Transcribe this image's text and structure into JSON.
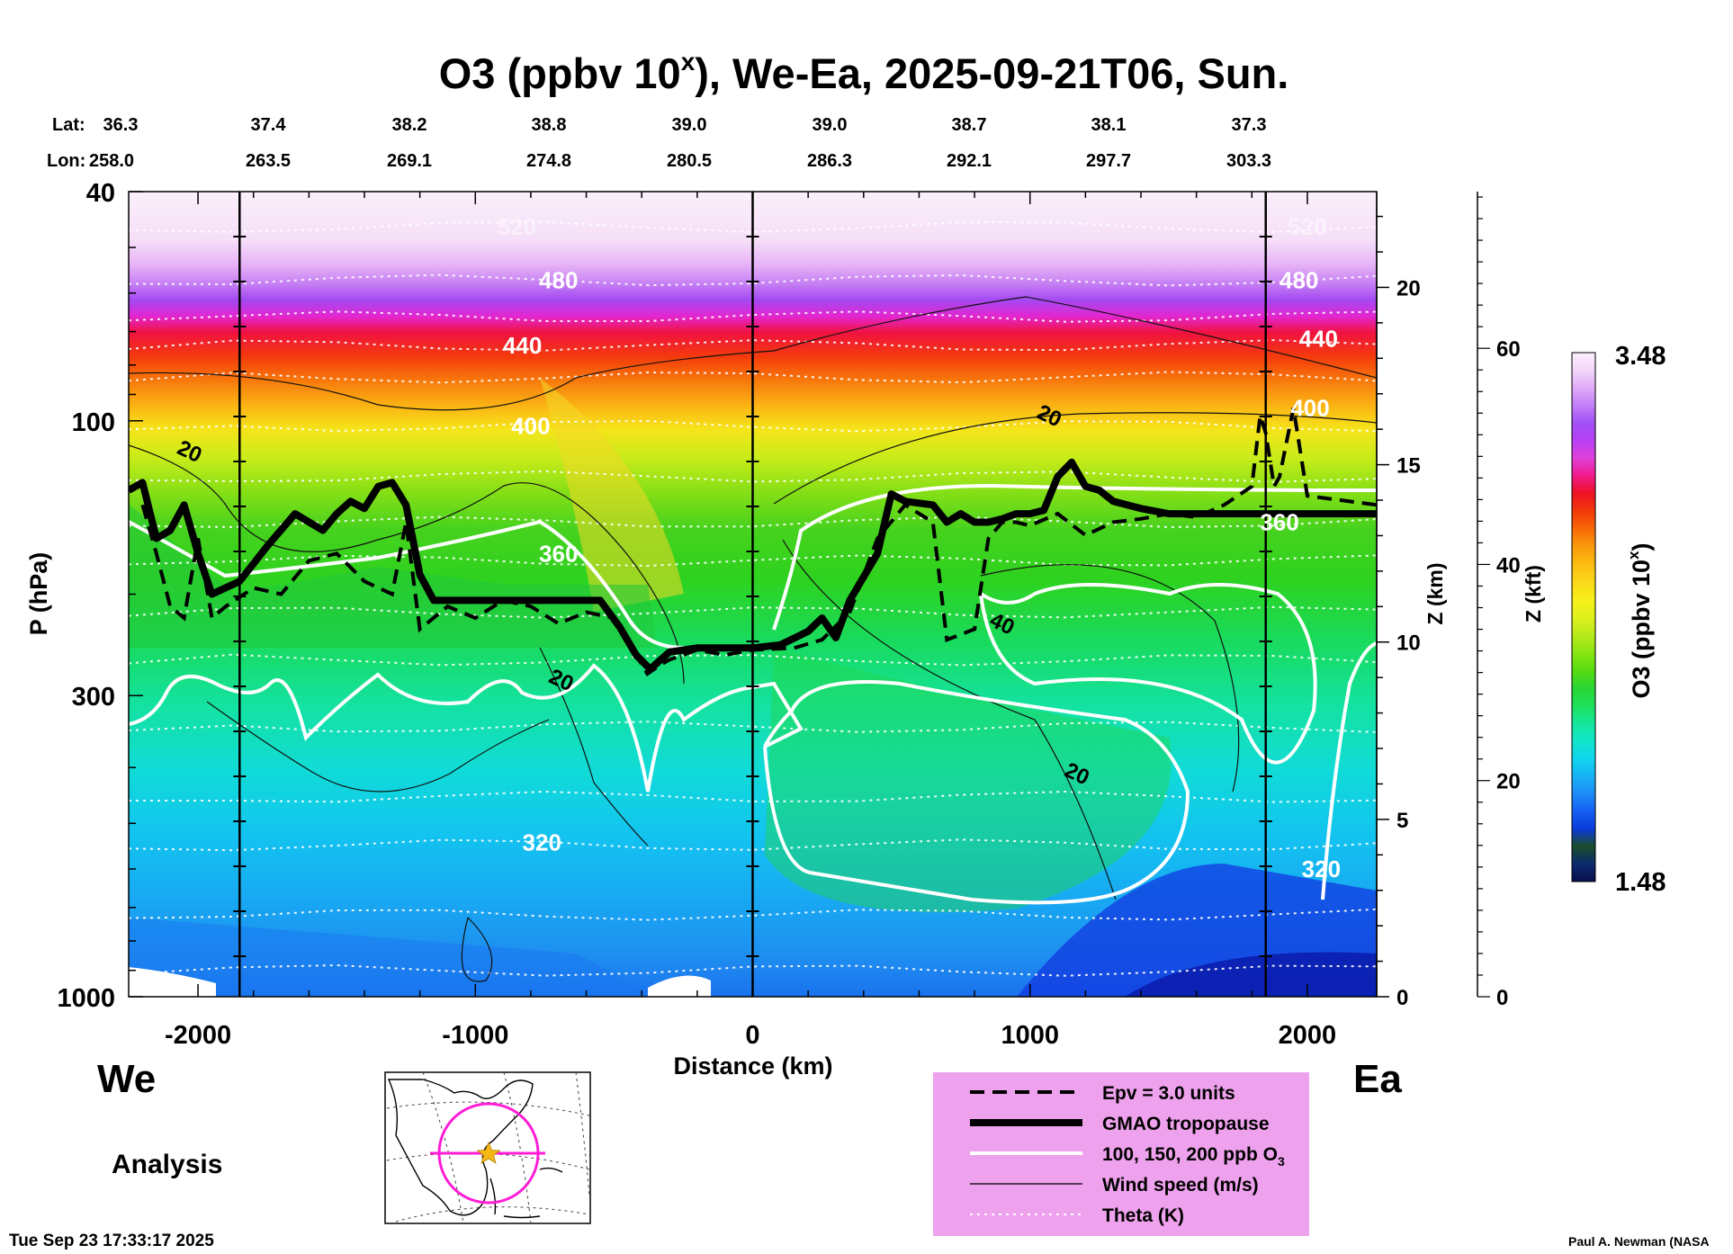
{
  "chart_data": {
    "type": "heatmap",
    "title": "O3 (ppbv 10",
    "title_superscript": "x",
    "title_suffix": "), We-Ea, 2025-09-21T06, Sun.",
    "xlabel": "Distance (km)",
    "ylabel_left": "P (hPa)",
    "ylabel_right1": "Z (km)",
    "ylabel_right2": "Z (kft)",
    "xlim": [
      -2250,
      2250
    ],
    "x_ticks": [
      -2000,
      -1000,
      0,
      1000,
      2000
    ],
    "y_ticks_pressure": [
      40,
      100,
      300,
      1000
    ],
    "z_km_ticks": [
      0,
      5,
      10,
      15,
      20
    ],
    "z_kft_ticks": [
      0,
      20,
      40,
      60
    ],
    "lat_label": "Lat:",
    "lon_label": "Lon:",
    "lat_values": [
      "36.3",
      "37.4",
      "38.2",
      "38.8",
      "39.0",
      "39.0",
      "38.7",
      "38.1",
      "37.3"
    ],
    "lon_values": [
      "258.0",
      "263.5",
      "269.1",
      "274.8",
      "280.5",
      "286.3",
      "292.1",
      "297.7",
      "303.3"
    ],
    "vertical_markers_km": [
      -1850,
      0,
      1850
    ],
    "theta_levels": [
      {
        "label": "520",
        "p": 46,
        "x": -850
      },
      {
        "label": "480",
        "p": 57,
        "x": -700
      },
      {
        "label": "440",
        "p": 74,
        "x": -830
      },
      {
        "label": "400",
        "p": 102,
        "x": -800
      },
      {
        "label": "360",
        "p": 170,
        "x": -700
      },
      {
        "label": "320",
        "p": 540,
        "x": -760
      },
      {
        "label": "520",
        "p": 46,
        "x": 2000
      },
      {
        "label": "480",
        "p": 57,
        "x": 1970
      },
      {
        "label": "440",
        "p": 72,
        "x": 2040
      },
      {
        "label": "400",
        "p": 95,
        "x": 2010
      },
      {
        "label": "360",
        "p": 150,
        "x": 1900
      },
      {
        "label": "320",
        "p": 600,
        "x": 2050
      }
    ],
    "wind_labels": [
      {
        "label": "20",
        "p": 113,
        "x": -2030
      },
      {
        "label": "20",
        "p": 282,
        "x": -690
      },
      {
        "label": "20",
        "p": 98,
        "x": 1070
      },
      {
        "label": "40",
        "p": 225,
        "x": 900
      },
      {
        "label": "20",
        "p": 410,
        "x": 1170
      }
    ],
    "tropopause_profile": {
      "x": [
        -2250,
        -2200,
        -2150,
        -2100,
        -2050,
        -2000,
        -1950,
        -1850,
        -1750,
        -1650,
        -1550,
        -1500,
        -1450,
        -1400,
        -1350,
        -1300,
        -1250,
        -1200,
        -1150,
        -1050,
        -950,
        -850,
        -700,
        -550,
        -480,
        -420,
        -370,
        -300,
        -200,
        -100,
        0,
        100,
        200,
        250,
        300,
        350,
        450,
        500,
        550,
        650,
        700,
        750,
        800,
        850,
        900,
        950,
        1000,
        1050,
        1100,
        1150,
        1200,
        1250,
        1300,
        1400,
        1500,
        1700,
        2000,
        2250
      ],
      "p": [
        132,
        128,
        160,
        155,
        140,
        170,
        200,
        190,
        165,
        145,
        155,
        145,
        138,
        142,
        130,
        128,
        140,
        185,
        205,
        205,
        205,
        205,
        205,
        205,
        228,
        255,
        270,
        252,
        248,
        248,
        248,
        245,
        232,
        220,
        238,
        205,
        170,
        134,
        138,
        140,
        150,
        145,
        150,
        150,
        148,
        145,
        145,
        143,
        125,
        118,
        130,
        132,
        138,
        142,
        145,
        145,
        145,
        145
      ]
    },
    "epv_profile": {
      "x": [
        -2200,
        -2150,
        -2100,
        -2050,
        -2000,
        -1950,
        -1900,
        -1800,
        -1700,
        -1600,
        -1500,
        -1400,
        -1300,
        -1250,
        -1200,
        -1100,
        -1000,
        -900,
        -800,
        -700,
        -600,
        -500,
        -420,
        -380,
        -330,
        -300,
        -200,
        -100,
        0,
        150,
        250,
        350,
        450,
        550,
        650,
        700,
        800,
        850,
        900,
        950,
        1000,
        1100,
        1200,
        1300,
        1400,
        1500,
        1600,
        1700,
        1800,
        1830,
        1850,
        1880,
        1900,
        1950,
        2000,
        2250
      ],
      "p": [
        140,
        170,
        210,
        220,
        160,
        220,
        210,
        195,
        200,
        175,
        170,
        190,
        200,
        150,
        230,
        210,
        220,
        205,
        210,
        225,
        215,
        220,
        255,
        275,
        265,
        260,
        250,
        255,
        250,
        248,
        240,
        215,
        160,
        140,
        150,
        240,
        230,
        160,
        150,
        150,
        152,
        145,
        158,
        150,
        148,
        145,
        147,
        140,
        130,
        98,
        105,
        130,
        125,
        95,
        135,
        140
      ]
    },
    "colorbar": {
      "label": "O3 (ppbv 10",
      "label_superscript": "x",
      "label_suffix": ")",
      "min_label": "1.48",
      "max_label": "3.48",
      "range": [
        1.48,
        3.48
      ],
      "colors": [
        "#08104d",
        "#0a2a6e",
        "#1a4d2a",
        "#0b3bdb",
        "#1560f2",
        "#1d8cf7",
        "#17b3f5",
        "#10d6ec",
        "#12e6c9",
        "#14e69a",
        "#1ee05a",
        "#2bd632",
        "#58dc10",
        "#8be514",
        "#b8ea1b",
        "#dff01c",
        "#f7f01a",
        "#fbd81a",
        "#fbbc12",
        "#fb9a0c",
        "#f76a08",
        "#f23a0a",
        "#ee1221",
        "#f01a8a",
        "#e040d8",
        "#b83ff5",
        "#a050f5",
        "#c27ef7",
        "#e0aaf8",
        "#f4d6fa",
        "#fbeefc"
      ]
    },
    "legend": {
      "placement": "bottom-right",
      "entries": [
        {
          "label": "Epv = 3.0 units",
          "style": "dashed-black"
        },
        {
          "label": "GMAO tropopause",
          "style": "thick-black"
        },
        {
          "label": "100, 150, 200 ppb O",
          "subscript": "3",
          "style": "thick-white"
        },
        {
          "label": "Wind speed (m/s)",
          "style": "thin-black"
        },
        {
          "label": "Theta (K)",
          "style": "dotted-white"
        }
      ]
    }
  },
  "labels": {
    "west": "We",
    "east": "Ea",
    "analysis": "Analysis",
    "timestamp": "Tue Sep 23 17:33:17 2025",
    "credit": "Paul A. Newman (NASA"
  },
  "colors": {
    "legend_bg": "#eea1ec",
    "map_circle": "#ff1dd6",
    "map_star": "#f5b817"
  }
}
